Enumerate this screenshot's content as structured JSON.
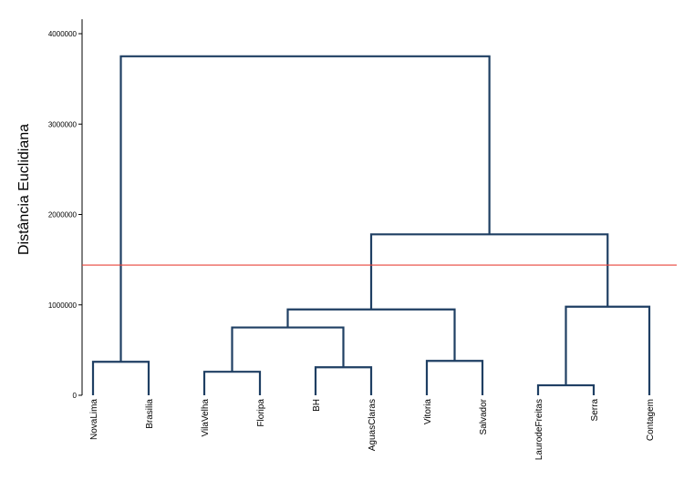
{
  "chart_data": {
    "type": "dendrogram",
    "ylabel": "Distância Euclidiana",
    "ylim": [
      0,
      4100000
    ],
    "yticks": [
      0,
      1000000,
      2000000,
      3000000,
      4000000
    ],
    "ytick_labels": [
      "0",
      "1000000",
      "2000000",
      "3000000",
      "4000000"
    ],
    "leaves": [
      "NovaLima",
      "Brasilia",
      "VilaVelha",
      "Floripa",
      "BH",
      "AguasClaras",
      "Vitoria",
      "Salvador",
      "LaurodeFreitas",
      "Serra",
      "Contagem"
    ],
    "merges": [
      {
        "left": "leaf:0",
        "right": "leaf:1",
        "height": 370000
      },
      {
        "left": "leaf:2",
        "right": "leaf:3",
        "height": 260000
      },
      {
        "left": "leaf:4",
        "right": "leaf:5",
        "height": 310000
      },
      {
        "left": "leaf:6",
        "right": "leaf:7",
        "height": 380000
      },
      {
        "left": "leaf:8",
        "right": "leaf:9",
        "height": 110000
      },
      {
        "left": "merge:1",
        "right": "merge:2",
        "height": 750000
      },
      {
        "left": "merge:5",
        "right": "merge:3",
        "height": 950000
      },
      {
        "left": "merge:4",
        "right": "leaf:10",
        "height": 980000
      },
      {
        "left": "merge:6",
        "right": "merge:7",
        "height": 1780000
      },
      {
        "left": "merge:0",
        "right": "merge:8",
        "height": 3750000
      }
    ],
    "cut_line": {
      "value": 1440000,
      "color": "#e8433a"
    },
    "colors": {
      "tree": "#1f3f63",
      "axis": "#000000"
    },
    "grid": false
  }
}
